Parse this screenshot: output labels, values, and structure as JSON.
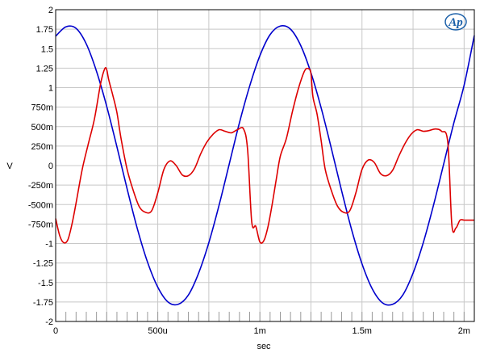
{
  "chart_data": {
    "type": "line",
    "xlabel": "sec",
    "ylabel": "V",
    "xlim": [
      0,
      0.00205
    ],
    "ylim": [
      -2,
      2
    ],
    "grid": true,
    "x_ticks": [
      {
        "value": 0,
        "label": "0"
      },
      {
        "value": 0.0005,
        "label": "500u"
      },
      {
        "value": 0.001,
        "label": "1m"
      },
      {
        "value": 0.0015,
        "label": "1.5m"
      },
      {
        "value": 0.002,
        "label": "2m"
      }
    ],
    "y_ticks": [
      {
        "value": 2,
        "label": "2"
      },
      {
        "value": 1.75,
        "label": "1.75"
      },
      {
        "value": 1.5,
        "label": "1.5"
      },
      {
        "value": 1.25,
        "label": "1.25"
      },
      {
        "value": 1,
        "label": "1"
      },
      {
        "value": 0.75,
        "label": "750m"
      },
      {
        "value": 0.5,
        "label": "500m"
      },
      {
        "value": 0.25,
        "label": "250m"
      },
      {
        "value": 0,
        "label": "0"
      },
      {
        "value": -0.25,
        "label": "-250m"
      },
      {
        "value": -0.5,
        "label": "-500m"
      },
      {
        "value": -0.75,
        "label": "-750m"
      },
      {
        "value": -1,
        "label": "-1"
      },
      {
        "value": -1.25,
        "label": "-1.25"
      },
      {
        "value": -1.5,
        "label": "-1.5"
      },
      {
        "value": -1.75,
        "label": "-1.75"
      },
      {
        "value": -2,
        "label": "-2"
      }
    ],
    "series": [
      {
        "color": "#0000cc",
        "x": [
          0,
          5e-05,
          0.0001,
          0.00015,
          0.0002,
          0.00025,
          0.0003,
          0.00035,
          0.0004,
          0.00045,
          0.0005,
          0.00055,
          0.0006,
          0.00065,
          0.0007,
          0.00075,
          0.0008,
          0.00085,
          0.0009,
          0.00095,
          0.001,
          0.00105,
          0.0011,
          0.00115,
          0.0012,
          0.00125,
          0.0013,
          0.00135,
          0.0014,
          0.00145,
          0.0015,
          0.00155,
          0.0016,
          0.00165,
          0.0017,
          0.00175,
          0.0018,
          0.00185,
          0.0019,
          0.00195,
          0.002,
          0.00205
        ],
        "y": [
          1.66,
          1.78,
          1.76,
          1.56,
          1.21,
          0.76,
          0.24,
          -0.3,
          -0.81,
          -1.24,
          -1.56,
          -1.75,
          -1.78,
          -1.66,
          -1.38,
          -0.99,
          -0.51,
          0.02,
          0.55,
          1.02,
          1.41,
          1.68,
          1.79,
          1.75,
          1.54,
          1.19,
          0.74,
          0.22,
          -0.32,
          -0.83,
          -1.26,
          -1.58,
          -1.76,
          -1.78,
          -1.66,
          -1.38,
          -0.99,
          -0.51,
          0.02,
          0.55,
          1.03,
          1.67
        ]
      },
      {
        "color": "#dd0000",
        "x": [
          0,
          2e-05,
          4e-05,
          6e-05,
          8e-05,
          0.0001,
          0.00013,
          0.00016,
          0.00019,
          0.00022,
          0.00024,
          0.00025,
          0.00026,
          0.00028,
          0.0003,
          0.00032,
          0.00035,
          0.00038,
          0.00041,
          0.00044,
          0.00047,
          0.0005,
          0.00053,
          0.00056,
          0.00059,
          0.00062,
          0.00065,
          0.00068,
          0.00071,
          0.00074,
          0.00077,
          0.0008,
          0.00083,
          0.00086,
          0.00089,
          0.00092,
          0.00094,
          0.00096,
          0.00098,
          0.001,
          0.00102,
          0.00104,
          0.00106,
          0.00108,
          0.0011,
          0.00113,
          0.00116,
          0.00119,
          0.00122,
          0.00124,
          0.00125,
          0.00126,
          0.00128,
          0.0013,
          0.00132,
          0.00135,
          0.00138,
          0.00141,
          0.00144,
          0.00147,
          0.0015,
          0.00153,
          0.00156,
          0.00159,
          0.00162,
          0.00165,
          0.00168,
          0.00171,
          0.00174,
          0.00177,
          0.0018,
          0.00183,
          0.00186,
          0.00189,
          0.00192,
          0.00194,
          0.00196,
          0.00198,
          0.002,
          0.00202,
          0.00205
        ],
        "y": [
          -0.68,
          -0.9,
          -0.99,
          -0.95,
          -0.75,
          -0.48,
          -0.05,
          0.28,
          0.6,
          1.05,
          1.24,
          1.23,
          1.1,
          0.9,
          0.68,
          0.35,
          -0.05,
          -0.32,
          -0.53,
          -0.6,
          -0.58,
          -0.35,
          -0.05,
          0.06,
          0.0,
          -0.12,
          -0.13,
          -0.04,
          0.15,
          0.3,
          0.4,
          0.46,
          0.44,
          0.42,
          0.46,
          0.47,
          0.2,
          -0.72,
          -0.78,
          -0.98,
          -0.96,
          -0.78,
          -0.5,
          -0.18,
          0.12,
          0.35,
          0.7,
          1.0,
          1.22,
          1.24,
          1.18,
          0.88,
          0.66,
          0.32,
          -0.05,
          -0.32,
          -0.52,
          -0.6,
          -0.58,
          -0.35,
          -0.05,
          0.07,
          0.04,
          -0.1,
          -0.13,
          -0.06,
          0.12,
          0.28,
          0.4,
          0.46,
          0.44,
          0.45,
          0.47,
          0.44,
          0.3,
          -0.76,
          -0.8,
          -0.7,
          -0.7,
          -0.7,
          -0.7
        ]
      }
    ]
  },
  "logo": {
    "text": "Ap"
  }
}
